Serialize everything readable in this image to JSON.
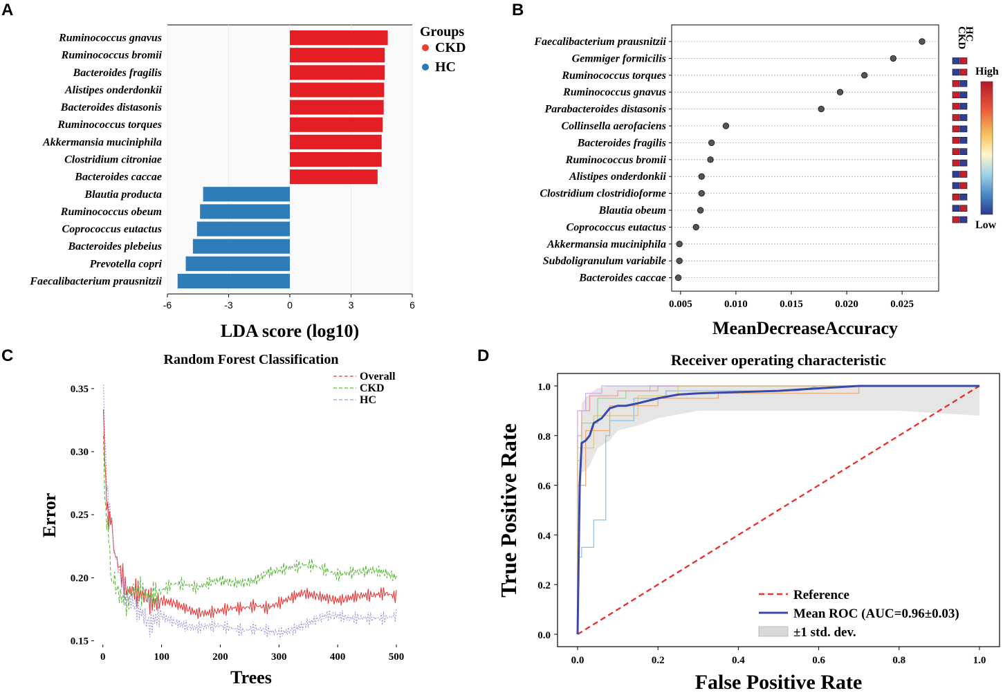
{
  "chart_data": [
    {
      "panel": "A",
      "type": "bar",
      "orientation": "horizontal",
      "title": "",
      "xlabel": "LDA score (log10)",
      "xlim": [
        -6,
        6
      ],
      "xticks": [
        "-6",
        "-3",
        "0",
        "3",
        "6"
      ],
      "legend": {
        "title": "Groups",
        "position": "right",
        "entries": [
          {
            "name": "CKD",
            "color": "#e8402f"
          },
          {
            "name": "HC",
            "color": "#2a7ab8"
          }
        ]
      },
      "colors": {
        "CKD": "#e31e24",
        "HC": "#2e7cb8"
      },
      "bars": [
        {
          "label": "Ruminococcus gnavus",
          "value": 4.8,
          "group": "CKD"
        },
        {
          "label": "Ruminococcus bromii",
          "value": 4.65,
          "group": "CKD"
        },
        {
          "label": "Bacteroides fragilis",
          "value": 4.65,
          "group": "CKD"
        },
        {
          "label": "Alistipes onderdonkii",
          "value": 4.62,
          "group": "CKD"
        },
        {
          "label": "Bacteroides distasonis",
          "value": 4.6,
          "group": "CKD"
        },
        {
          "label": "Ruminococcus torques",
          "value": 4.55,
          "group": "CKD"
        },
        {
          "label": "Akkermansia muciniphila",
          "value": 4.5,
          "group": "CKD"
        },
        {
          "label": "Clostridium citroniae",
          "value": 4.5,
          "group": "CKD"
        },
        {
          "label": "Bacteroides caccae",
          "value": 4.3,
          "group": "CKD"
        },
        {
          "label": "Blautia producta",
          "value": -4.25,
          "group": "HC"
        },
        {
          "label": "Ruminococcus obeum",
          "value": -4.4,
          "group": "HC"
        },
        {
          "label": "Coprococcus eutactus",
          "value": -4.55,
          "group": "HC"
        },
        {
          "label": "Bacteroides plebeius",
          "value": -4.75,
          "group": "HC"
        },
        {
          "label": "Prevotella copri",
          "value": -5.1,
          "group": "HC"
        },
        {
          "label": "Faecalibacterium prausnitzii",
          "value": -5.5,
          "group": "HC"
        }
      ]
    },
    {
      "panel": "B",
      "type": "scatter",
      "title": "",
      "xlabel": "MeanDecreaseAccuracy",
      "xlim": [
        0.0042,
        0.0283
      ],
      "xticks": [
        "0.005",
        "0.010",
        "0.015",
        "0.020",
        "0.025"
      ],
      "points": [
        {
          "label": "Faecalibacterium prausnitzii",
          "value": 0.0268,
          "ckd": 0.1,
          "hc": 0.9
        },
        {
          "label": "Gemmiger formicilis",
          "value": 0.0242,
          "ckd": 0.1,
          "hc": 0.9
        },
        {
          "label": "Ruminococcus torques",
          "value": 0.0216,
          "ckd": 0.9,
          "hc": 0.1
        },
        {
          "label": "Ruminococcus gnavus",
          "value": 0.0194,
          "ckd": 0.9,
          "hc": 0.1
        },
        {
          "label": "Parabacteroides distasonis",
          "value": 0.0177,
          "ckd": 0.9,
          "hc": 0.1
        },
        {
          "label": "Collinsella aerofaciens",
          "value": 0.0091,
          "ckd": 0.9,
          "hc": 0.1
        },
        {
          "label": "Bacteroides fragilis",
          "value": 0.0078,
          "ckd": 0.9,
          "hc": 0.1
        },
        {
          "label": "Ruminococcus bromii",
          "value": 0.0077,
          "ckd": 0.9,
          "hc": 0.1
        },
        {
          "label": "Alistipes onderdonkii",
          "value": 0.0069,
          "ckd": 0.9,
          "hc": 0.1
        },
        {
          "label": "Clostridium clostridioforme",
          "value": 0.0069,
          "ckd": 0.9,
          "hc": 0.1
        },
        {
          "label": "Blautia obeum",
          "value": 0.0068,
          "ckd": 0.1,
          "hc": 0.9
        },
        {
          "label": "Coprococcus eutactus",
          "value": 0.0064,
          "ckd": 0.1,
          "hc": 0.9
        },
        {
          "label": "Akkermansia muciniphila",
          "value": 0.0049,
          "ckd": 0.9,
          "hc": 0.1
        },
        {
          "label": "Subdoligranulum variabile",
          "value": 0.0049,
          "ckd": 0.1,
          "hc": 0.9
        },
        {
          "label": "Bacteroides caccae",
          "value": 0.0048,
          "ckd": 0.9,
          "hc": 0.1
        }
      ],
      "heatmap": {
        "columns": [
          "CKD",
          "HC"
        ],
        "high_label": "High",
        "low_label": "Low"
      }
    },
    {
      "panel": "C",
      "type": "line",
      "title": "Random Forest Classification",
      "xlabel": "Trees",
      "ylabel": "Error",
      "xlim": [
        0,
        500
      ],
      "ylim": [
        0.15,
        0.36
      ],
      "xticks": [
        "0",
        "100",
        "200",
        "300",
        "400",
        "500"
      ],
      "yticks": [
        "0.15",
        "0.20",
        "0.25",
        "0.30",
        "0.35"
      ],
      "legend": "top-right",
      "series": [
        {
          "name": "Overall",
          "color": "#e8393a",
          "dash": "6,3",
          "x": [
            1,
            5,
            10,
            15,
            20,
            30,
            40,
            50,
            60,
            70,
            80,
            90,
            100,
            120,
            140,
            160,
            180,
            200,
            220,
            240,
            260,
            280,
            300,
            320,
            340,
            360,
            380,
            400,
            420,
            440,
            460,
            480,
            500
          ],
          "values": [
            0.33,
            0.27,
            0.25,
            0.24,
            0.22,
            0.205,
            0.19,
            0.19,
            0.188,
            0.186,
            0.182,
            0.18,
            0.182,
            0.18,
            0.176,
            0.172,
            0.172,
            0.174,
            0.176,
            0.176,
            0.178,
            0.176,
            0.18,
            0.184,
            0.188,
            0.186,
            0.184,
            0.182,
            0.184,
            0.186,
            0.186,
            0.188,
            0.185
          ]
        },
        {
          "name": "CKD",
          "color": "#5ab83c",
          "dash": "5,3",
          "x": [
            1,
            5,
            10,
            15,
            20,
            30,
            40,
            50,
            60,
            70,
            80,
            90,
            100,
            120,
            140,
            160,
            180,
            200,
            220,
            240,
            260,
            280,
            300,
            320,
            340,
            360,
            380,
            400,
            420,
            440,
            460,
            480,
            500
          ],
          "values": [
            0.3,
            0.25,
            0.23,
            0.2,
            0.195,
            0.185,
            0.18,
            0.19,
            0.19,
            0.188,
            0.186,
            0.186,
            0.19,
            0.195,
            0.195,
            0.192,
            0.196,
            0.198,
            0.196,
            0.196,
            0.198,
            0.204,
            0.206,
            0.208,
            0.21,
            0.21,
            0.206,
            0.202,
            0.204,
            0.205,
            0.206,
            0.204,
            0.2
          ]
        },
        {
          "name": "HC",
          "color": "#9d96d8",
          "dash": "2,2",
          "x": [
            1,
            5,
            10,
            15,
            20,
            30,
            40,
            50,
            60,
            70,
            80,
            90,
            100,
            120,
            140,
            160,
            180,
            200,
            220,
            240,
            260,
            280,
            300,
            320,
            340,
            360,
            380,
            400,
            420,
            440,
            460,
            480,
            500
          ],
          "values": [
            0.35,
            0.29,
            0.26,
            0.24,
            0.22,
            0.2,
            0.185,
            0.18,
            0.175,
            0.17,
            0.162,
            0.168,
            0.17,
            0.165,
            0.162,
            0.16,
            0.162,
            0.162,
            0.16,
            0.158,
            0.16,
            0.158,
            0.156,
            0.158,
            0.162,
            0.166,
            0.17,
            0.17,
            0.168,
            0.168,
            0.168,
            0.168,
            0.17
          ]
        }
      ]
    },
    {
      "panel": "D",
      "type": "line",
      "title": "Receiver operating characteristic",
      "xlabel": "False Positive Rate",
      "ylabel": "True Positive Rate",
      "xlim": [
        -0.05,
        1.05
      ],
      "ylim": [
        -0.05,
        1.05
      ],
      "xticks": [
        "0.0",
        "0.2",
        "0.4",
        "0.6",
        "0.8",
        "1.0"
      ],
      "yticks": [
        "0.0",
        "0.2",
        "0.4",
        "0.6",
        "0.8",
        "1.0"
      ],
      "legend": "bottom-right",
      "series": [
        {
          "name": "Reference",
          "color": "#e8332f",
          "dash": "8,5",
          "x": [
            0,
            1
          ],
          "values": [
            0,
            1
          ]
        },
        {
          "name": "Mean ROC (AUC=0.96±0.03)",
          "color": "#3a48a8",
          "dash": "",
          "x": [
            0,
            0.005,
            0.01,
            0.02,
            0.03,
            0.04,
            0.05,
            0.06,
            0.08,
            0.1,
            0.12,
            0.15,
            0.2,
            0.25,
            0.3,
            0.4,
            0.5,
            0.6,
            0.7,
            0.8,
            0.9,
            1.0
          ],
          "values": [
            0,
            0.6,
            0.77,
            0.78,
            0.8,
            0.85,
            0.86,
            0.87,
            0.91,
            0.92,
            0.92,
            0.93,
            0.95,
            0.965,
            0.97,
            0.975,
            0.98,
            0.99,
            1.0,
            1.0,
            1.0,
            1.0
          ]
        },
        {
          "name": "±1 std. dev.",
          "color": "#d0d0d0",
          "dash": "",
          "x": [
            0,
            0.01,
            0.02,
            0.03,
            0.05,
            0.08,
            0.1,
            0.15,
            0.2,
            0.3,
            0.4,
            0.5,
            0.6,
            0.7,
            0.8,
            0.9,
            1.0
          ],
          "upper": [
            0.4,
            0.93,
            0.95,
            0.97,
            0.99,
            1.0,
            1.0,
            1.0,
            1.0,
            1.0,
            1.0,
            1.0,
            1.0,
            1.0,
            1.0,
            1.0,
            1.0
          ],
          "lower": [
            0,
            0.65,
            0.66,
            0.68,
            0.75,
            0.78,
            0.82,
            0.84,
            0.87,
            0.9,
            0.9,
            0.9,
            0.9,
            0.9,
            0.9,
            0.89,
            0.88
          ]
        }
      ],
      "folds": [
        {
          "color": "#7fb8e0",
          "x": [
            0,
            0,
            0.01,
            0.01,
            0.04,
            0.04,
            0.07,
            0.07,
            0.08,
            0.08,
            0.14,
            0.14,
            0.22,
            0.22,
            0.55,
            0.6,
            0.7,
            1
          ],
          "values": [
            0,
            0.31,
            0.31,
            0.35,
            0.35,
            0.46,
            0.46,
            0.8,
            0.8,
            0.86,
            0.86,
            0.95,
            0.95,
            0.98,
            0.98,
            1,
            1,
            1
          ]
        },
        {
          "color": "#f0a060",
          "x": [
            0,
            0,
            0.02,
            0.02,
            0.08,
            0.08,
            0.2,
            0.2,
            0.35,
            0.35,
            0.6,
            0.7,
            0.7,
            1
          ],
          "values": [
            0,
            0.6,
            0.6,
            0.82,
            0.82,
            0.92,
            0.92,
            0.95,
            0.95,
            0.97,
            0.97,
            0.97,
            1,
            1
          ]
        },
        {
          "color": "#90d090",
          "x": [
            0,
            0,
            0.01,
            0.01,
            0.05,
            0.05,
            0.12,
            0.12,
            0.18,
            0.18,
            1
          ],
          "values": [
            0,
            0.7,
            0.7,
            0.85,
            0.85,
            0.95,
            0.95,
            0.98,
            0.98,
            1,
            1
          ]
        },
        {
          "color": "#f09090",
          "x": [
            0,
            0,
            0.01,
            0.01,
            0.03,
            0.03,
            0.1,
            0.1,
            0.2,
            0.2,
            1
          ],
          "values": [
            0,
            0.8,
            0.8,
            0.9,
            0.9,
            0.96,
            0.96,
            0.98,
            0.98,
            1,
            1
          ]
        },
        {
          "color": "#c0a0e0",
          "x": [
            0,
            0,
            0.02,
            0.02,
            0.06,
            0.06,
            1
          ],
          "values": [
            0,
            0.9,
            0.9,
            0.97,
            0.97,
            1,
            1
          ]
        },
        {
          "color": "#e0c070",
          "x": [
            0,
            0,
            0.04,
            0.04,
            0.15,
            0.15,
            0.25,
            0.25,
            1
          ],
          "values": [
            0,
            0.75,
            0.75,
            0.88,
            0.88,
            0.96,
            0.96,
            1,
            1
          ]
        }
      ]
    }
  ],
  "panel_labels": [
    "A",
    "B",
    "C",
    "D"
  ]
}
